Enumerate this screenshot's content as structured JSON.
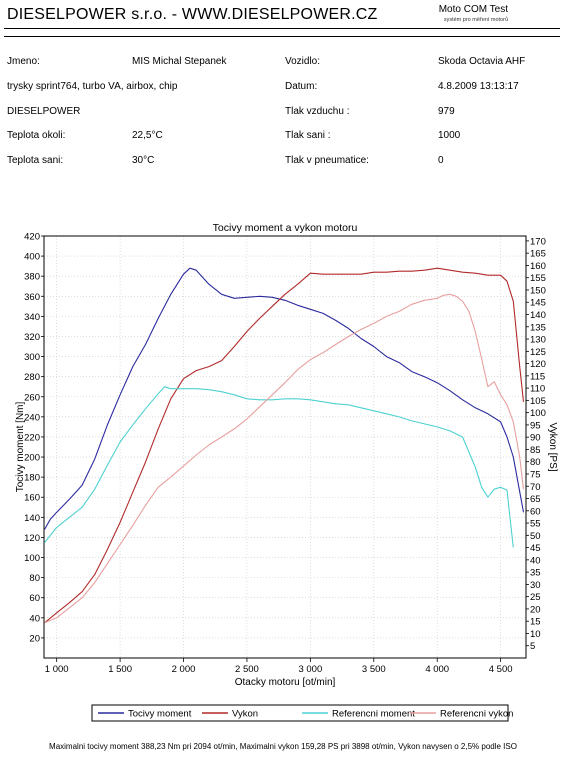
{
  "header": {
    "title": "DIESELPOWER s.r.o. - WWW.DIESELPOWER.CZ",
    "brand": "Moto COM Test",
    "brand_sub": "systém pro měření motorů"
  },
  "info": {
    "left": [
      {
        "label": "Jmeno:",
        "value": "MIS Michal Stepanek"
      },
      {
        "label": "trysky sprint764, turbo VA, airbox, chip",
        "value": ""
      },
      {
        "label": "DIESELPOWER",
        "value": ""
      },
      {
        "label": "Teplota okoli:",
        "value": "22,5°C"
      },
      {
        "label": "Teplota sani:",
        "value": "30°C"
      }
    ],
    "right": [
      {
        "label": "Vozidlo:",
        "value": "Skoda Octavia AHF"
      },
      {
        "label": "Datum:",
        "value": "4.8.2009 13:13:17"
      },
      {
        "label": "Tlak vzduchu :",
        "value": "979"
      },
      {
        "label": "Tlak sani :",
        "value": "1000"
      },
      {
        "label": "Tlak v pneumatice:",
        "value": "0"
      }
    ]
  },
  "chart_data": {
    "type": "line",
    "title": "Tocivy moment a vykon motoru",
    "xlabel": "Otacky motoru [ot/min]",
    "ylabel_left": "Tocivy moment [Nm]",
    "ylabel_right": "Vykon [PS]",
    "xlim": [
      900,
      4700
    ],
    "ylim_left": [
      0,
      420
    ],
    "ylim_right": [
      0,
      172
    ],
    "x_ticks": [
      1000,
      1500,
      2000,
      2500,
      3000,
      3500,
      4000,
      4500
    ],
    "x_tick_labels": [
      "1 000",
      "1 500",
      "2 000",
      "2 500",
      "3 000",
      "3 500",
      "4 000",
      "4 500"
    ],
    "y_ticks_left": [
      20,
      40,
      60,
      80,
      100,
      120,
      140,
      160,
      180,
      200,
      220,
      240,
      260,
      280,
      300,
      320,
      340,
      360,
      380,
      400,
      420
    ],
    "y_ticks_right": [
      5,
      10,
      15,
      20,
      25,
      30,
      35,
      40,
      45,
      50,
      55,
      60,
      65,
      70,
      75,
      80,
      85,
      90,
      95,
      100,
      105,
      110,
      115,
      120,
      125,
      130,
      135,
      140,
      145,
      150,
      155,
      160,
      165,
      170
    ],
    "grid": true,
    "legend_position": "bottom",
    "series": [
      {
        "name": "Tocivy moment",
        "axis": "left",
        "color": "#2b2b9e",
        "x": [
          905,
          950,
          1000,
          1100,
          1200,
          1300,
          1400,
          1500,
          1600,
          1700,
          1800,
          1900,
          2000,
          2050,
          2100,
          2200,
          2300,
          2400,
          2500,
          2600,
          2700,
          2800,
          2900,
          3000,
          3100,
          3200,
          3300,
          3400,
          3500,
          3600,
          3700,
          3800,
          3900,
          4000,
          4100,
          4200,
          4300,
          4400,
          4500,
          4550,
          4600,
          4680
        ],
        "y": [
          128,
          138,
          145,
          158,
          172,
          198,
          232,
          262,
          290,
          312,
          338,
          362,
          382,
          388,
          386,
          372,
          362,
          358,
          359,
          360,
          359,
          356,
          351,
          347,
          343,
          336,
          328,
          318,
          310,
          300,
          294,
          285,
          280,
          274,
          266,
          257,
          249,
          243,
          235,
          220,
          200,
          145
        ]
      },
      {
        "name": "Vykon",
        "axis": "left",
        "color": "#b22a2a",
        "x": [
          905,
          1000,
          1100,
          1200,
          1300,
          1400,
          1500,
          1600,
          1700,
          1800,
          1900,
          2000,
          2100,
          2200,
          2300,
          2400,
          2500,
          2600,
          2700,
          2800,
          2900,
          3000,
          3100,
          3200,
          3300,
          3400,
          3500,
          3600,
          3700,
          3800,
          3900,
          4000,
          4100,
          4200,
          4300,
          4400,
          4500,
          4550,
          4600,
          4650,
          4680
        ],
        "y": [
          35,
          45,
          55,
          66,
          83,
          108,
          135,
          165,
          195,
          228,
          258,
          278,
          286,
          290,
          296,
          310,
          325,
          338,
          350,
          362,
          372,
          383,
          382,
          382,
          382,
          382,
          384,
          384,
          385,
          385,
          386,
          388,
          386,
          384,
          383,
          381,
          381,
          375,
          355,
          290,
          255
        ]
      },
      {
        "name": "Referencni moment",
        "axis": "left",
        "color": "#4fd1d1",
        "x": [
          905,
          1000,
          1100,
          1200,
          1300,
          1400,
          1500,
          1600,
          1700,
          1800,
          1850,
          1900,
          2000,
          2100,
          2200,
          2300,
          2400,
          2500,
          2600,
          2700,
          2800,
          2900,
          3000,
          3100,
          3200,
          3300,
          3400,
          3500,
          3600,
          3700,
          3800,
          3900,
          4000,
          4100,
          4200,
          4250,
          4300,
          4350,
          4400,
          4450,
          4500,
          4550,
          4600
        ],
        "y": [
          115,
          130,
          140,
          150,
          168,
          192,
          215,
          232,
          248,
          263,
          270,
          268,
          268,
          268,
          267,
          265,
          262,
          258,
          257,
          257,
          258,
          258,
          257,
          255,
          253,
          252,
          249,
          246,
          243,
          240,
          236,
          233,
          230,
          226,
          220,
          205,
          190,
          170,
          160,
          168,
          170,
          167,
          110
        ]
      },
      {
        "name": "Referencni vykon",
        "axis": "left",
        "color": "#e8a0a0",
        "x": [
          905,
          1000,
          1100,
          1200,
          1300,
          1400,
          1500,
          1600,
          1700,
          1800,
          1900,
          2000,
          2100,
          2200,
          2300,
          2400,
          2500,
          2600,
          2700,
          2800,
          2900,
          3000,
          3100,
          3200,
          3300,
          3400,
          3500,
          3600,
          3700,
          3800,
          3900,
          4000,
          4050,
          4100,
          4150,
          4200,
          4250,
          4300,
          4350,
          4400,
          4450,
          4500,
          4550,
          4600,
          4650,
          4680
        ],
        "y": [
          35,
          40,
          50,
          60,
          75,
          94,
          113,
          132,
          152,
          170,
          180,
          191,
          202,
          212,
          220,
          228,
          238,
          250,
          262,
          274,
          287,
          297,
          304,
          312,
          320,
          327,
          333,
          340,
          345,
          352,
          356,
          358,
          361,
          362,
          360,
          355,
          345,
          325,
          298,
          270,
          275,
          262,
          252,
          235,
          200,
          168
        ]
      }
    ]
  },
  "footer": "Maximalni tocivy moment 388,23 Nm pri 2094 ot/min,  Maximalni vykon 159,28 PS pri 3898 ot/min,  Vykon navysen o 2,5% podle ISO"
}
